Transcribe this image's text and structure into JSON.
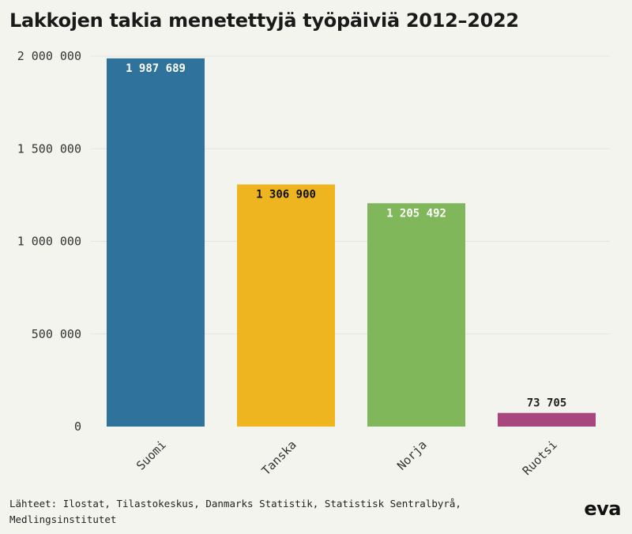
{
  "title": "Lakkojen takia menetettyjä työpäiviä 2012–2022",
  "source": "Lähteet: Ilostat, Tilastokeskus, Danmarks Statistik, Statistisk Sentralbyrå, Medlingsinstitutet",
  "logo": "eva",
  "chart_data": {
    "type": "bar",
    "title": "Lakkojen takia menetettyjä työpäiviä 2012–2022",
    "xlabel": "",
    "ylabel": "",
    "ylim": [
      0,
      2000000
    ],
    "yticks": [
      0,
      500000,
      1000000,
      1500000,
      2000000
    ],
    "ytick_labels": [
      "0",
      "500 000",
      "1 000 000",
      "1 500 000",
      "2 000 000"
    ],
    "grid": true,
    "categories": [
      "Suomi",
      "Tanska",
      "Norja",
      "Ruotsi"
    ],
    "values": [
      1987689,
      1306900,
      1205492,
      73705
    ],
    "value_labels": [
      "1 987 689",
      "1 306 900",
      "1 205 492",
      "73 705"
    ],
    "colors": [
      "#2f739c",
      "#efb521",
      "#80b75a",
      "#a8477e"
    ],
    "label_colors": [
      "#ffffff",
      "#111111",
      "#ffffff",
      "#222222"
    ],
    "label_positions": [
      "inside",
      "inside",
      "inside",
      "outside"
    ]
  }
}
